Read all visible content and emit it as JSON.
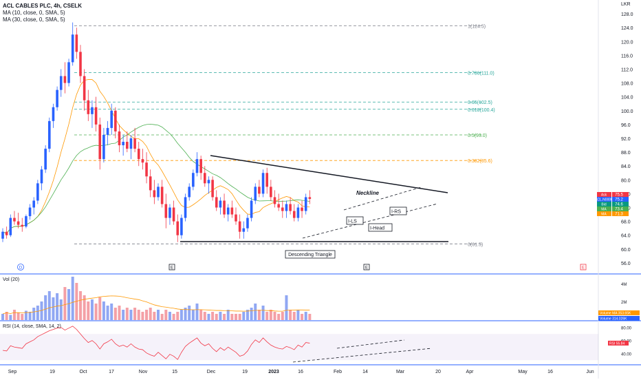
{
  "header": {
    "title": "ACL CABLES PLC, 4h, CSELK",
    "ma10_label": "MA (10, close, 0, SMA, 5)",
    "ma30_label": "MA (30, close, 0, SMA, 5)",
    "currency": "LKR"
  },
  "chart_data": {
    "type": "candlestick",
    "price_axis": {
      "ylim": [
        54,
        130
      ],
      "ticks": [
        56,
        60,
        64,
        68,
        72,
        76,
        80,
        84,
        88,
        92,
        96,
        100,
        104,
        108,
        112,
        116,
        120,
        124,
        128
      ]
    },
    "x_ticks": [
      "Sep",
      "19",
      "Oct",
      "17",
      "Nov",
      "15",
      "Dec",
      "19",
      "2023",
      "16",
      "Feb",
      "14",
      "Mar",
      "20",
      "Apr",
      "May",
      "16",
      "Jun"
    ],
    "fib_levels": [
      {
        "label": "1(124.5)",
        "value": 124.5,
        "color": "#787b86"
      },
      {
        "label": "0.786(111.0)",
        "value": 111.0,
        "color": "#26a69a"
      },
      {
        "label": "0.65(102.5)",
        "value": 102.5,
        "color": "#26a69a"
      },
      {
        "label": "0.618(100.4)",
        "value": 100.4,
        "color": "#26a69a"
      },
      {
        "label": "0.5(93.0)",
        "value": 93.0,
        "color": "#4caf50"
      },
      {
        "label": "0.382(85.6)",
        "value": 85.6,
        "color": "#ff9800"
      },
      {
        "label": "0(61.5)",
        "value": 61.5,
        "color": "#787b86"
      }
    ],
    "candles": [
      [
        63.0,
        66.0,
        62.0,
        65.0
      ],
      [
        65.0,
        66.5,
        63.0,
        64.0
      ],
      [
        64.0,
        70.0,
        63.5,
        69.0
      ],
      [
        69.0,
        71.0,
        67.0,
        68.0
      ],
      [
        68.0,
        70.5,
        66.0,
        67.0
      ],
      [
        67.0,
        69.0,
        65.0,
        66.5
      ],
      [
        66.5,
        70.0,
        66.0,
        69.5
      ],
      [
        69.5,
        73.0,
        68.5,
        72.0
      ],
      [
        72.0,
        75.0,
        70.0,
        74.0
      ],
      [
        74.0,
        80.0,
        73.0,
        79.0
      ],
      [
        79.0,
        84.0,
        77.0,
        83.0
      ],
      [
        83.0,
        90.0,
        82.0,
        89.0
      ],
      [
        89.0,
        98.0,
        88.0,
        97.0
      ],
      [
        97.0,
        102.0,
        95.0,
        101.0
      ],
      [
        101.0,
        107.0,
        100.0,
        106.0
      ],
      [
        106.0,
        112.0,
        104.0,
        110.0
      ],
      [
        110.0,
        114.0,
        105.0,
        108.0
      ],
      [
        108.0,
        115.0,
        107.0,
        114.0
      ],
      [
        114.0,
        125.5,
        113.0,
        122.0
      ],
      [
        122.0,
        124.0,
        115.0,
        117.0
      ],
      [
        117.0,
        119.0,
        108.0,
        110.0
      ],
      [
        110.0,
        112.0,
        100.0,
        103.0
      ],
      [
        103.0,
        106.0,
        97.0,
        99.0
      ],
      [
        99.0,
        103.0,
        95.0,
        101.0
      ],
      [
        101.0,
        104.0,
        94.0,
        96.0
      ],
      [
        96.0,
        98.0,
        83.0,
        86.0
      ],
      [
        86.0,
        95.0,
        85.0,
        93.0
      ],
      [
        93.0,
        97.0,
        90.0,
        95.0
      ],
      [
        95.0,
        102.0,
        93.0,
        100.0
      ],
      [
        100.0,
        101.0,
        92.0,
        94.0
      ],
      [
        94.0,
        96.0,
        88.0,
        90.0
      ],
      [
        90.0,
        93.0,
        87.0,
        91.0
      ],
      [
        91.0,
        94.0,
        88.0,
        89.0
      ],
      [
        89.0,
        93.0,
        86.0,
        92.0
      ],
      [
        92.0,
        95.0,
        88.0,
        89.0
      ],
      [
        89.0,
        91.0,
        84.0,
        86.0
      ],
      [
        86.0,
        89.0,
        83.0,
        85.0
      ],
      [
        85.0,
        88.0,
        79.0,
        81.0
      ],
      [
        81.0,
        83.0,
        75.0,
        77.0
      ],
      [
        77.0,
        80.0,
        73.0,
        75.0
      ],
      [
        75.0,
        79.0,
        74.0,
        78.0
      ],
      [
        78.0,
        80.0,
        72.0,
        73.0
      ],
      [
        73.0,
        76.0,
        66.0,
        69.0
      ],
      [
        69.0,
        73.0,
        67.0,
        72.0
      ],
      [
        72.0,
        74.0,
        67.0,
        68.0
      ],
      [
        68.0,
        70.0,
        62.0,
        64.0
      ],
      [
        64.0,
        70.0,
        63.0,
        69.0
      ],
      [
        69.0,
        76.0,
        68.0,
        75.0
      ],
      [
        75.0,
        79.0,
        74.0,
        78.0
      ],
      [
        78.0,
        83.0,
        77.0,
        82.0
      ],
      [
        82.0,
        88.0,
        81.0,
        86.0
      ],
      [
        86.0,
        87.0,
        80.0,
        82.0
      ],
      [
        82.0,
        84.0,
        78.0,
        79.0
      ],
      [
        79.0,
        81.0,
        76.0,
        80.0
      ],
      [
        80.0,
        81.0,
        74.0,
        75.0
      ],
      [
        75.0,
        77.0,
        71.0,
        72.0
      ],
      [
        72.0,
        75.0,
        70.0,
        74.0
      ],
      [
        74.0,
        76.0,
        69.0,
        70.0
      ],
      [
        70.0,
        73.0,
        68.0,
        72.0
      ],
      [
        72.0,
        74.0,
        69.0,
        70.0
      ],
      [
        70.0,
        72.0,
        67.0,
        68.0
      ],
      [
        68.0,
        70.0,
        63.0,
        65.0
      ],
      [
        65.0,
        68.0,
        63.0,
        66.0
      ],
      [
        66.0,
        70.0,
        65.0,
        69.0
      ],
      [
        69.0,
        75.0,
        68.0,
        74.0
      ],
      [
        74.0,
        79.0,
        73.0,
        78.0
      ],
      [
        78.0,
        80.0,
        75.0,
        76.0
      ],
      [
        76.0,
        83.0,
        75.0,
        82.0
      ],
      [
        82.0,
        83.5,
        76.0,
        78.0
      ],
      [
        78.0,
        80.0,
        74.0,
        75.0
      ],
      [
        75.0,
        77.0,
        72.0,
        73.0
      ],
      [
        73.0,
        76.0,
        71.0,
        72.0
      ],
      [
        72.0,
        74.0,
        69.0,
        71.0
      ],
      [
        71.0,
        74.0,
        69.0,
        73.0
      ],
      [
        73.0,
        75.0,
        70.0,
        71.0
      ],
      [
        71.0,
        73.0,
        68.0,
        69.0
      ],
      [
        69.0,
        73.0,
        68.0,
        72.0
      ],
      [
        72.0,
        74.0,
        69.0,
        71.0
      ],
      [
        71.0,
        76.0,
        70.0,
        75.0
      ],
      [
        75.0,
        77.0,
        73.0,
        74.5
      ]
    ],
    "neckline_label": "Neckline",
    "pattern_labels": [
      "I-LS",
      "I-Head",
      "I-RS"
    ],
    "pattern_title": "Descending Triangle",
    "event_markers": [
      "D",
      "E",
      "E",
      "E"
    ],
    "price_tags": [
      {
        "label": "Ask",
        "value": "75.5",
        "color": "#f23645"
      },
      {
        "label": "ACL.N0000",
        "value": "75.2",
        "color": "#2962ff"
      },
      {
        "label": "Bid",
        "value": "74.6",
        "color": "#089981"
      },
      {
        "label": "MA",
        "value": "73.4",
        "color": "#4caf50"
      },
      {
        "label": "MA",
        "value": "71.3",
        "color": "#ff9800"
      }
    ],
    "volume": {
      "label": "Vol (20)",
      "ticks": [
        "4M",
        "2M"
      ],
      "tags": [
        {
          "label": "Volume MA",
          "value": "353.65K",
          "color": "#ff9800"
        },
        {
          "label": "Volume",
          "value": "314.026K",
          "color": "#2962ff"
        }
      ],
      "values": [
        0.3,
        0.4,
        0.25,
        0.5,
        0.35,
        0.3,
        0.45,
        0.4,
        0.6,
        0.7,
        0.9,
        1.2,
        1.4,
        1.1,
        1.3,
        1.0,
        1.6,
        1.5,
        2.1,
        1.8,
        1.4,
        1.2,
        0.9,
        1.0,
        0.8,
        1.1,
        0.9,
        0.7,
        0.8,
        0.6,
        0.7,
        0.5,
        0.6,
        0.5,
        0.6,
        0.5,
        0.4,
        0.5,
        0.6,
        0.4,
        0.5,
        0.3,
        0.5,
        0.4,
        0.3,
        0.4,
        0.5,
        0.6,
        0.7,
        0.5,
        0.8,
        0.5,
        0.4,
        0.3,
        0.4,
        0.3,
        0.4,
        0.3,
        0.5,
        0.3,
        0.3,
        0.3,
        0.4,
        0.5,
        0.6,
        0.8,
        0.5,
        0.7,
        0.4,
        0.5,
        0.4,
        0.3,
        0.4,
        1.2,
        0.5,
        0.4,
        0.5,
        0.3,
        0.4,
        0.3
      ]
    },
    "rsi": {
      "label": "RSI (14, close, SMA, 14, 2)",
      "ylim": [
        25,
        85
      ],
      "ticks": [
        80.0,
        60.0,
        40.0
      ],
      "band": [
        30,
        70
      ],
      "tag": {
        "label": "RSI",
        "value": "55.84",
        "color": "#f23645"
      },
      "values": [
        45,
        44,
        52,
        50,
        49,
        48,
        55,
        58,
        61,
        66,
        69,
        72,
        75,
        77,
        79,
        80,
        76,
        79,
        82,
        77,
        70,
        63,
        57,
        60,
        55,
        47,
        55,
        58,
        62,
        55,
        51,
        53,
        50,
        55,
        50,
        47,
        46,
        41,
        38,
        36,
        42,
        37,
        32,
        39,
        36,
        31,
        42,
        51,
        56,
        60,
        64,
        56,
        52,
        55,
        48,
        43,
        49,
        45,
        50,
        46,
        42,
        36,
        38,
        44,
        54,
        61,
        57,
        64,
        58,
        53,
        50,
        48,
        47,
        51,
        49,
        46,
        53,
        50,
        57,
        56
      ]
    }
  }
}
